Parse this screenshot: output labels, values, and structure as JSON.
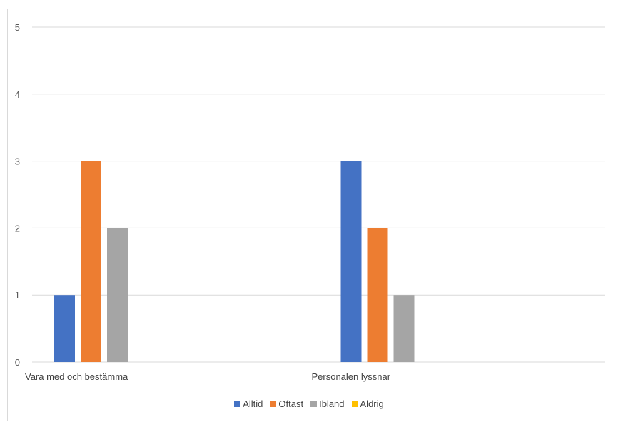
{
  "chart_data": {
    "type": "bar",
    "title": "",
    "xlabel": "",
    "ylabel": "",
    "categories": [
      "Vara med och bestämma",
      "Personalen lyssnar"
    ],
    "series": [
      {
        "name": "Alltid",
        "color": "#4472c4",
        "values": [
          1,
          3
        ]
      },
      {
        "name": "Oftast",
        "color": "#ed7d31",
        "values": [
          3,
          2
        ]
      },
      {
        "name": "Ibland",
        "color": "#a5a5a5",
        "values": [
          2,
          1
        ]
      },
      {
        "name": "Aldrig",
        "color": "#ffc000",
        "values": [
          0,
          0
        ]
      }
    ],
    "ylim": [
      0,
      5
    ],
    "yticks": [
      "0",
      "1",
      "2",
      "3",
      "4",
      "5"
    ],
    "grid": true,
    "legend_position": "bottom"
  }
}
